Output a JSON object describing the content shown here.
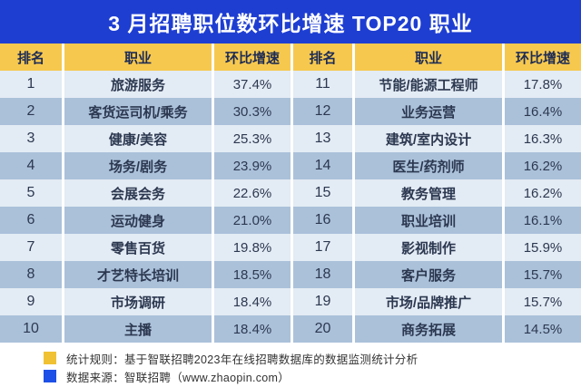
{
  "title": "3 月招聘职位数环比增速 TOP20 职业",
  "columns": {
    "rank": "排名",
    "occupation": "职业",
    "growth": "环比增速"
  },
  "left_rows": [
    {
      "rank": "1",
      "occupation": "旅游服务",
      "growth": "37.4%"
    },
    {
      "rank": "2",
      "occupation": "客货运司机/乘务",
      "growth": "30.3%"
    },
    {
      "rank": "3",
      "occupation": "健康/美容",
      "growth": "25.3%"
    },
    {
      "rank": "4",
      "occupation": "场务/剧务",
      "growth": "23.9%"
    },
    {
      "rank": "5",
      "occupation": "会展会务",
      "growth": "22.6%"
    },
    {
      "rank": "6",
      "occupation": "运动健身",
      "growth": "21.0%"
    },
    {
      "rank": "7",
      "occupation": "零售百货",
      "growth": "19.8%"
    },
    {
      "rank": "8",
      "occupation": "才艺特长培训",
      "growth": "18.5%"
    },
    {
      "rank": "9",
      "occupation": "市场调研",
      "growth": "18.4%"
    },
    {
      "rank": "10",
      "occupation": "主播",
      "growth": "18.4%"
    }
  ],
  "right_rows": [
    {
      "rank": "11",
      "occupation": "节能/能源工程师",
      "growth": "17.8%"
    },
    {
      "rank": "12",
      "occupation": "业务运营",
      "growth": "16.4%"
    },
    {
      "rank": "13",
      "occupation": "建筑/室内设计",
      "growth": "16.3%"
    },
    {
      "rank": "14",
      "occupation": "医生/药剂师",
      "growth": "16.2%"
    },
    {
      "rank": "15",
      "occupation": "教务管理",
      "growth": "16.2%"
    },
    {
      "rank": "16",
      "occupation": "职业培训",
      "growth": "16.1%"
    },
    {
      "rank": "17",
      "occupation": "影视制作",
      "growth": "15.9%"
    },
    {
      "rank": "18",
      "occupation": "客户服务",
      "growth": "15.7%"
    },
    {
      "rank": "19",
      "occupation": "市场/品牌推广",
      "growth": "15.7%"
    },
    {
      "rank": "20",
      "occupation": "商务拓展",
      "growth": "14.5%"
    }
  ],
  "footer": {
    "legend": [
      {
        "swatch": "#f0c233",
        "text": "统计规则：基于智联招聘2023年在线招聘数据库的数据监测统计分析"
      },
      {
        "swatch": "#1d50e6",
        "text": "数据来源：智联招聘（www.zhaopin.com）"
      }
    ]
  },
  "colors": {
    "title_bar": "#1e3ed2",
    "header_bg": "#f6c84e",
    "header_text": "#1e2c55",
    "row_light": "#e3ebf4",
    "row_dark": "#abc1da",
    "cell_text": "#2c3850",
    "separator": "#ffffff",
    "legend_yellow": "#f0c233",
    "legend_blue": "#1d50e6"
  },
  "chart_data": {
    "type": "table",
    "title": "3 月招聘职位数环比增速 TOP20 职业",
    "columns": [
      "排名",
      "职业",
      "环比增速"
    ],
    "rows": [
      [
        1,
        "旅游服务",
        37.4
      ],
      [
        2,
        "客货运司机/乘务",
        30.3
      ],
      [
        3,
        "健康/美容",
        25.3
      ],
      [
        4,
        "场务/剧务",
        23.9
      ],
      [
        5,
        "会展会务",
        22.6
      ],
      [
        6,
        "运动健身",
        21.0
      ],
      [
        7,
        "零售百货",
        19.8
      ],
      [
        8,
        "才艺特长培训",
        18.5
      ],
      [
        9,
        "市场调研",
        18.4
      ],
      [
        10,
        "主播",
        18.4
      ],
      [
        11,
        "节能/能源工程师",
        17.8
      ],
      [
        12,
        "业务运营",
        16.4
      ],
      [
        13,
        "建筑/室内设计",
        16.3
      ],
      [
        14,
        "医生/药剂师",
        16.2
      ],
      [
        15,
        "教务管理",
        16.2
      ],
      [
        16,
        "职业培训",
        16.1
      ],
      [
        17,
        "影视制作",
        15.9
      ],
      [
        18,
        "客户服务",
        15.7
      ],
      [
        19,
        "市场/品牌推广",
        15.7
      ],
      [
        20,
        "商务拓展",
        14.5
      ]
    ],
    "value_unit": "%",
    "value_meaning": "环比增速 (month-over-month growth of job postings)",
    "source_note": "基于智联招聘2023年在线招聘数据库的数据监测统计分析；数据来源：智联招聘（www.zhaopin.com）"
  }
}
